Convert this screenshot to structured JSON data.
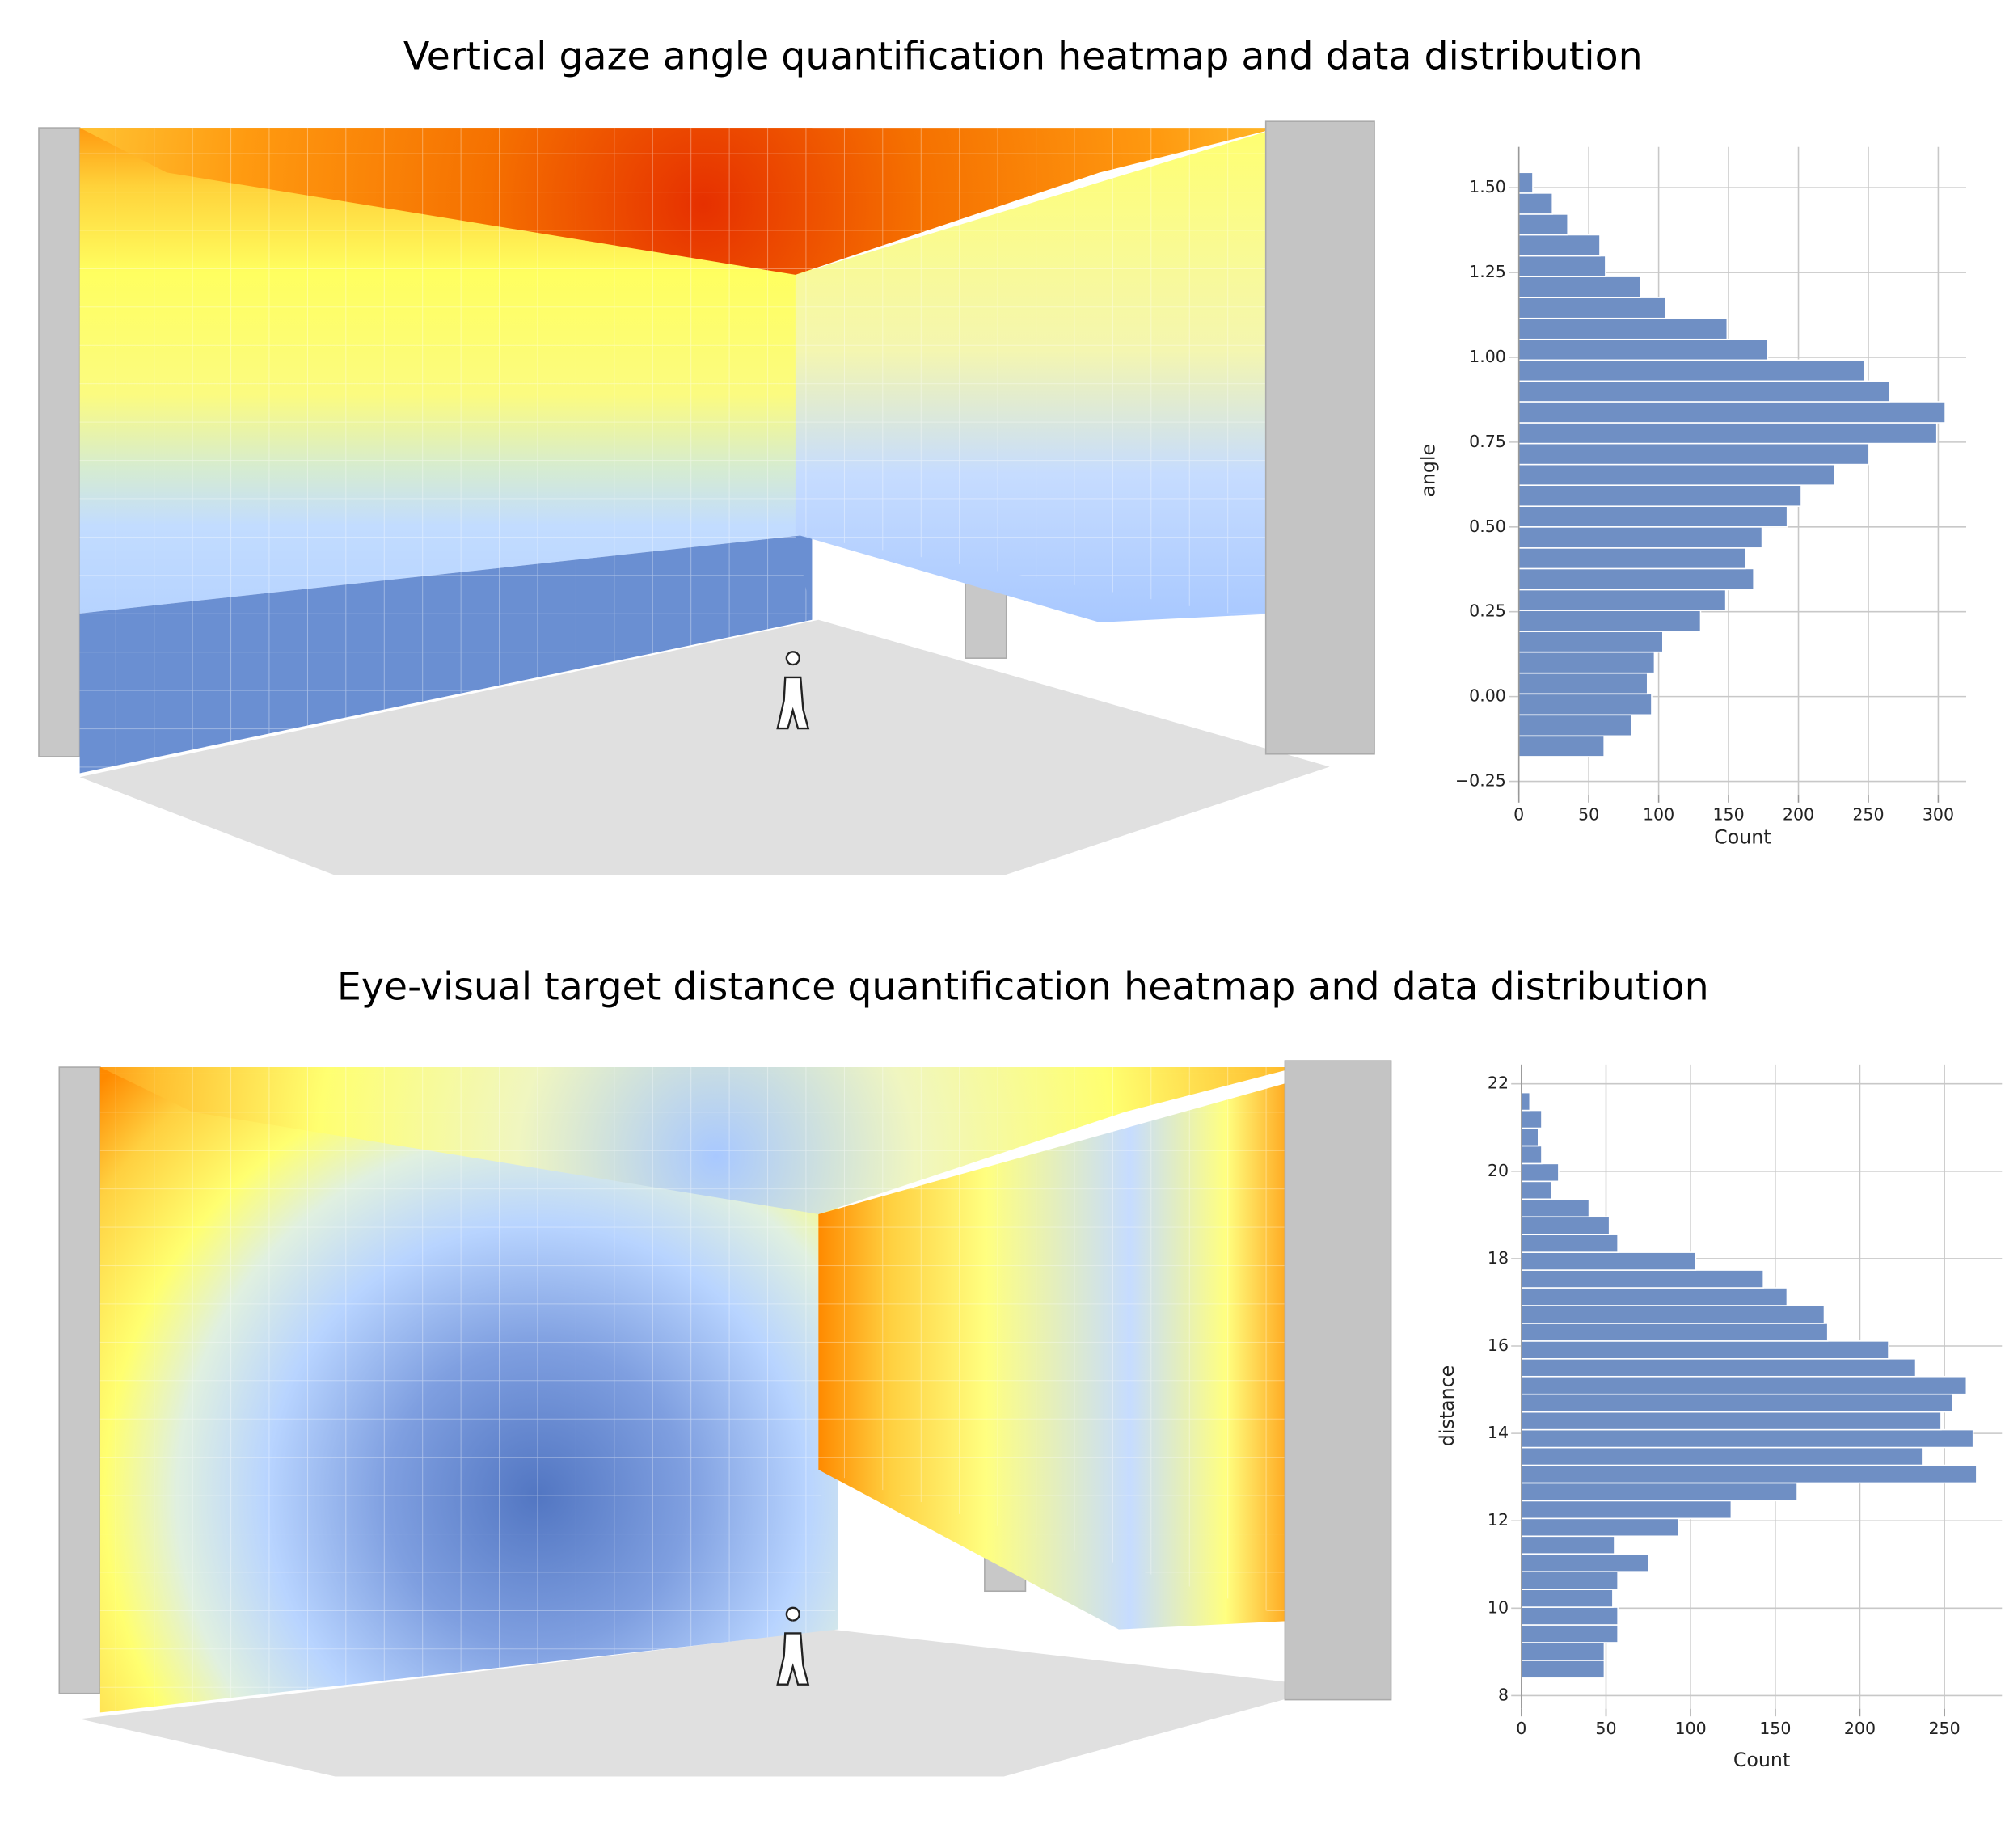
{
  "chart_data": [
    {
      "type": "histogram",
      "orientation": "horizontal",
      "title": "Vertical gaze angle quantification heatmap and data distribution",
      "x_label": "Count",
      "y_label": "angle",
      "bins": [
        -0.177,
        -0.116,
        -0.054,
        0.008,
        0.069,
        0.131,
        0.192,
        0.254,
        0.315,
        0.377,
        0.438,
        0.5,
        0.561,
        0.623,
        0.684,
        0.746,
        0.807,
        0.869,
        0.93,
        0.992,
        1.053,
        1.115,
        1.176,
        1.238,
        1.299,
        1.361,
        1.422,
        1.484,
        1.545
      ],
      "values": [
        61,
        81,
        95,
        92,
        97,
        103,
        130,
        148,
        168,
        162,
        174,
        192,
        202,
        226,
        250,
        299,
        305,
        265,
        247,
        178,
        149,
        105,
        87,
        62,
        58,
        35,
        24,
        10
      ],
      "color": "#6f8fc4",
      "xlim": [
        0,
        320
      ],
      "xticks": [
        0,
        50,
        100,
        150,
        200,
        250,
        300
      ],
      "ylim": [
        -0.29,
        1.62
      ],
      "yticks": [
        {
          "value": -0.25,
          "label": "−0.25"
        },
        {
          "value": 0,
          "label": "0.00"
        },
        {
          "value": 0.25,
          "label": "0.25"
        },
        {
          "value": 0.5,
          "label": "0.50"
        },
        {
          "value": 0.75,
          "label": "0.75"
        },
        {
          "value": 1,
          "label": "1.00"
        },
        {
          "value": 1.25,
          "label": "1.25"
        },
        {
          "value": 1.5,
          "label": "1.50"
        }
      ],
      "grid": true
    },
    {
      "type": "histogram",
      "orientation": "horizontal",
      "title": "Eye-visual target distance quantification heatmap and data distribution",
      "x_label": "Count",
      "y_label": "distance",
      "bins": [
        8.4,
        8.806,
        9.212,
        9.618,
        10.024,
        10.43,
        10.836,
        11.242,
        11.648,
        12.054,
        12.46,
        12.866,
        13.272,
        13.678,
        14.084,
        14.49,
        14.896,
        15.302,
        15.708,
        16.114,
        16.52,
        16.926,
        17.332,
        17.738,
        18.144,
        18.55,
        18.956,
        19.362,
        19.768,
        20.174,
        20.58,
        20.986,
        21.392,
        21.798
      ],
      "values": [
        49,
        49,
        57,
        57,
        54,
        57,
        75,
        55,
        93,
        124,
        163,
        269,
        237,
        267,
        248,
        255,
        263,
        233,
        217,
        181,
        179,
        157,
        143,
        103,
        57,
        52,
        40,
        18,
        22,
        12,
        10,
        12,
        5
      ],
      "color": "#6f8fc4",
      "xlim": [
        0,
        284
      ],
      "xticks": [
        0,
        50,
        100,
        150,
        200,
        250
      ],
      "ylim": [
        7.7,
        22.44
      ],
      "yticks": [
        8,
        10,
        12,
        14,
        16,
        18,
        20,
        22
      ],
      "grid": true
    }
  ]
}
